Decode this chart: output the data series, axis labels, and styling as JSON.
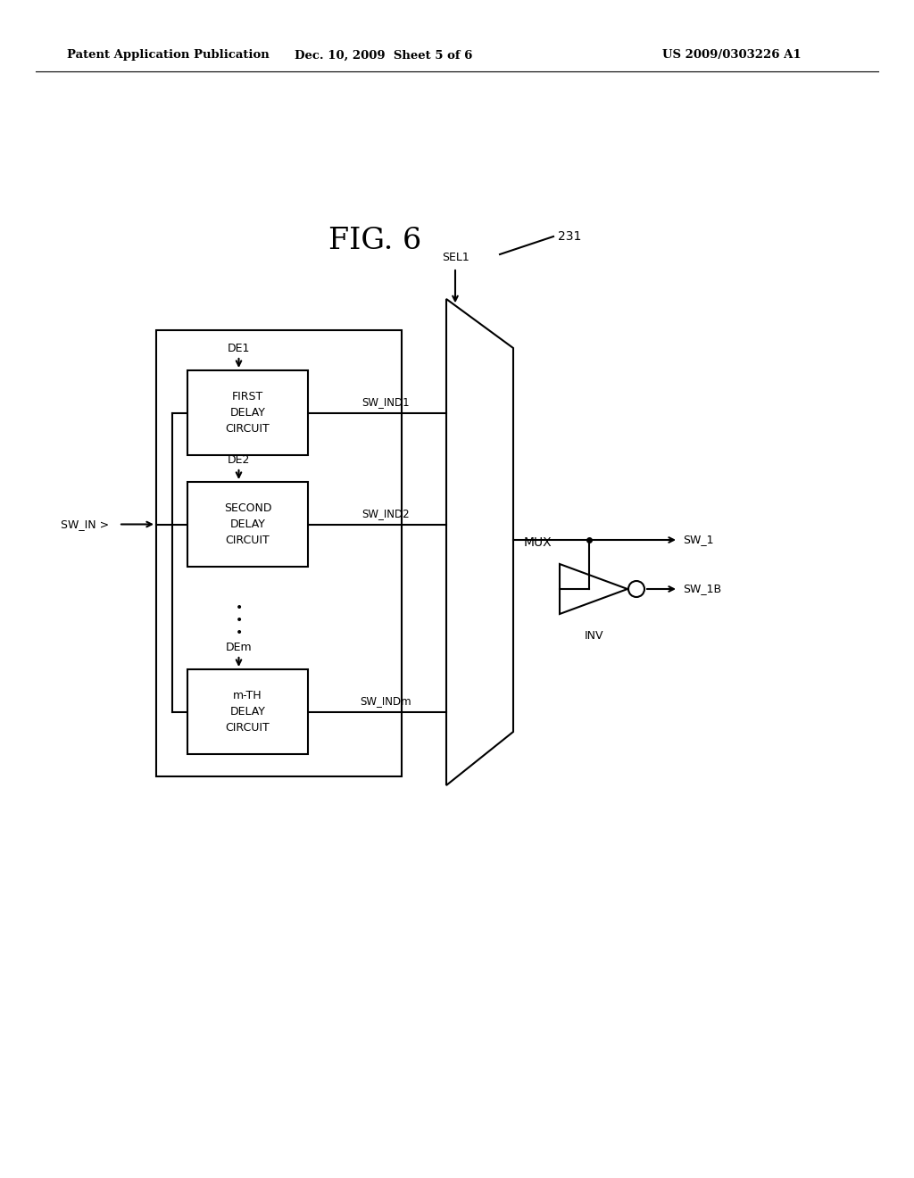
{
  "bg_color": "#ffffff",
  "header_left": "Patent Application Publication",
  "header_mid": "Dec. 10, 2009  Sheet 5 of 6",
  "header_right": "US 2009/0303226 A1",
  "fig_title": "FIG. 6",
  "mux_label": "MUX",
  "sel1_label": "SEL1",
  "label_231": "231",
  "sw_in_label": "SW_IN",
  "sw1_label": "SW_1",
  "sw1b_label": "SW_1B",
  "inv_label": "INV",
  "de1_label": "DE1",
  "de2_label": "DE2",
  "dem_label": "DEm",
  "sw_ind1_label": "SW_IND1",
  "sw_ind2_label": "SW_IND2",
  "sw_indm_label": "SW_INDm",
  "box1_text": "FIRST\nDELAY\nCIRCUIT",
  "box2_text": "SECOND\nDELAY\nCIRCUIT",
  "boxm_text": "m-TH\nDELAY\nCIRCUIT"
}
